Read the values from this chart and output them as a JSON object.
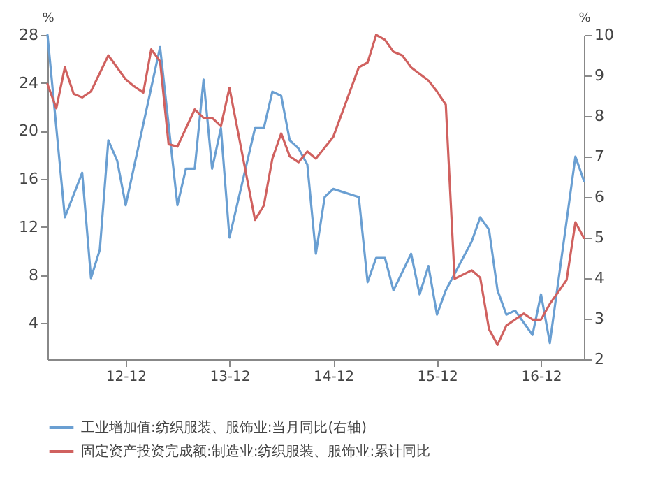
{
  "chart_data": {
    "type": "line",
    "ylabel": "%",
    "y2label": "%",
    "xlim": [
      "2012-03",
      "2017-05"
    ],
    "xticks": [
      {
        "value": "2012-12",
        "label": "12-12"
      },
      {
        "value": "2013-12",
        "label": "13-12"
      },
      {
        "value": "2014-12",
        "label": "14-12"
      },
      {
        "value": "2015-12",
        "label": "15-12"
      },
      {
        "value": "2016-12",
        "label": "16-12"
      }
    ],
    "ylim": [
      1,
      28
    ],
    "yticks": [
      4,
      8,
      12,
      16,
      20,
      24,
      28
    ],
    "y2lim": [
      2,
      10
    ],
    "y2ticks": [
      2,
      3,
      4,
      5,
      6,
      7,
      8,
      9,
      10
    ],
    "grid": false,
    "legend": "bottom",
    "series": [
      {
        "name": "工业增加值:纺织服装、服饰业:当月同比(右轴)",
        "color": "#6a9fd2",
        "axis": "y2",
        "x": [
          "2012-03",
          "2012-05",
          "2012-07",
          "2012-08",
          "2012-09",
          "2012-10",
          "2012-11",
          "2012-12",
          "2013-04",
          "2013-06",
          "2013-07",
          "2013-08",
          "2013-09",
          "2013-10",
          "2013-11",
          "2013-12",
          "2014-03",
          "2014-04",
          "2014-05",
          "2014-06",
          "2014-07",
          "2014-08",
          "2014-09",
          "2014-10",
          "2014-11",
          "2014-12",
          "2015-03",
          "2015-04",
          "2015-05",
          "2015-06",
          "2015-07",
          "2015-09",
          "2015-10",
          "2015-11",
          "2015-12",
          "2016-01",
          "2016-04",
          "2016-05",
          "2016-06",
          "2016-07",
          "2016-08",
          "2016-09",
          "2016-11",
          "2016-12",
          "2017-01",
          "2017-04",
          "2017-05"
        ],
        "values": [
          10.0,
          5.5,
          6.6,
          4.0,
          4.7,
          7.4,
          6.9,
          5.8,
          9.7,
          5.8,
          6.7,
          6.7,
          8.9,
          6.7,
          7.7,
          5.0,
          7.7,
          7.7,
          8.6,
          8.5,
          7.4,
          7.2,
          6.8,
          4.6,
          6.0,
          6.2,
          6.0,
          3.9,
          4.5,
          4.5,
          3.7,
          4.6,
          3.6,
          4.3,
          3.1,
          3.7,
          4.9,
          5.5,
          5.2,
          3.7,
          3.1,
          3.2,
          2.6,
          3.6,
          2.4,
          7.0,
          6.4
        ]
      },
      {
        "name": "固定资产投资完成额:制造业:纺织服装、服饰业:累计同比",
        "color": "#d0615f",
        "axis": "y",
        "x": [
          "2012-03",
          "2012-04",
          "2012-05",
          "2012-06",
          "2012-07",
          "2012-08",
          "2012-10",
          "2012-12",
          "2013-01",
          "2013-02",
          "2013-03",
          "2013-04",
          "2013-05",
          "2013-06",
          "2013-08",
          "2013-09",
          "2013-10",
          "2013-11",
          "2013-12",
          "2014-03",
          "2014-04",
          "2014-05",
          "2014-06",
          "2014-07",
          "2014-08",
          "2014-09",
          "2014-10",
          "2014-12",
          "2015-03",
          "2015-04",
          "2015-05",
          "2015-06",
          "2015-07",
          "2015-08",
          "2015-09",
          "2015-11",
          "2015-12",
          "2016-01",
          "2016-02",
          "2016-04",
          "2016-05",
          "2016-06",
          "2016-07",
          "2016-08",
          "2016-10",
          "2016-11",
          "2016-12",
          "2017-01",
          "2017-03",
          "2017-04",
          "2017-05"
        ],
        "values": [
          23.9,
          21.9,
          25.3,
          23.1,
          22.8,
          23.3,
          26.3,
          24.3,
          23.7,
          23.2,
          26.8,
          25.8,
          18.9,
          18.7,
          21.8,
          21.1,
          21.1,
          20.4,
          23.6,
          12.6,
          13.8,
          17.7,
          19.8,
          17.9,
          17.4,
          18.3,
          17.7,
          19.5,
          25.3,
          25.7,
          28.0,
          27.6,
          26.6,
          26.3,
          25.3,
          24.2,
          23.3,
          22.2,
          7.7,
          8.4,
          7.8,
          3.5,
          2.2,
          3.8,
          4.8,
          4.3,
          4.3,
          5.6,
          7.6,
          12.4,
          11.1
        ]
      }
    ]
  }
}
